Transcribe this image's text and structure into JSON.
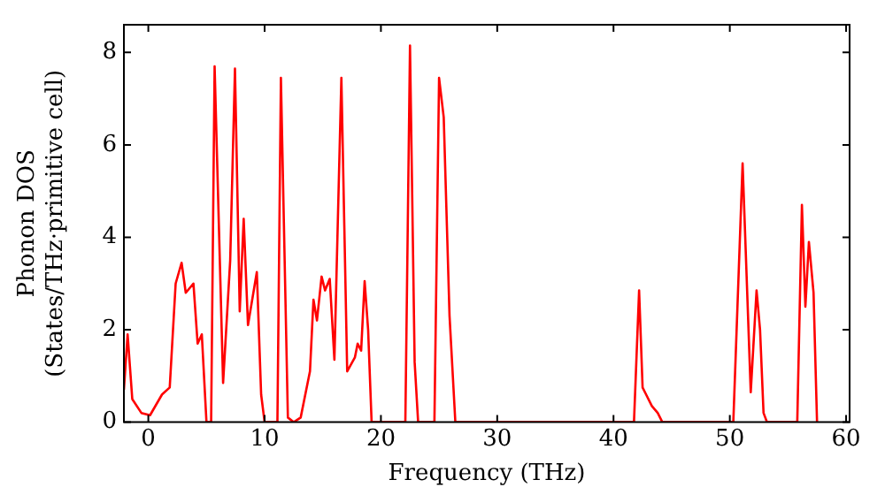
{
  "chart_data": {
    "type": "line",
    "xlabel": "Frequency (THz)",
    "ylabel": "Phonon DOS\n(States/THz·primitive cell)",
    "xlim": [
      -2.1,
      60.3
    ],
    "ylim": [
      0,
      8.6
    ],
    "xticks": [
      0,
      10,
      20,
      30,
      40,
      50,
      60
    ],
    "yticks": [
      0,
      2,
      4,
      6,
      8
    ],
    "grid": false,
    "legend": false,
    "marker": "none",
    "line_style": "solid",
    "series": [
      {
        "color": "#ff0000",
        "x": [
          -2.1,
          -1.78,
          -1.38,
          -0.6,
          0.15,
          1.18,
          1.84,
          2.35,
          2.86,
          3.22,
          3.88,
          4.24,
          4.6,
          5.0,
          5.4,
          5.7,
          6.43,
          7.04,
          7.45,
          7.86,
          8.2,
          8.57,
          9.33,
          9.7,
          10.0,
          11.1,
          11.4,
          12.0,
          12.5,
          13.1,
          13.9,
          14.2,
          14.5,
          14.9,
          15.2,
          15.6,
          16.0,
          16.6,
          17.1,
          17.76,
          18.0,
          18.3,
          18.6,
          18.9,
          19.2,
          22.1,
          22.5,
          22.9,
          23.2,
          24.6,
          25.0,
          25.4,
          25.9,
          26.4,
          41.76,
          42.2,
          42.5,
          42.8,
          43.3,
          43.8,
          44.2,
          50.3,
          51.1,
          51.8,
          52.3,
          52.6,
          52.9,
          53.2,
          55.8,
          56.2,
          56.5,
          56.8,
          57.2,
          57.5
        ],
        "values": [
          0.7,
          1.9,
          0.5,
          0.2,
          0.15,
          0.6,
          0.75,
          3.0,
          3.45,
          2.8,
          3.0,
          1.7,
          1.9,
          0,
          0,
          7.7,
          0.85,
          3.5,
          7.65,
          2.4,
          4.4,
          2.1,
          3.25,
          0.6,
          0,
          0,
          7.45,
          0.1,
          0,
          0.1,
          1.1,
          2.65,
          2.2,
          3.15,
          2.85,
          3.1,
          1.35,
          7.45,
          1.1,
          1.4,
          1.7,
          1.55,
          3.05,
          2.0,
          0,
          0,
          8.15,
          1.3,
          0,
          0,
          7.45,
          6.6,
          2.3,
          0,
          0,
          2.85,
          0.75,
          0.6,
          0.35,
          0.2,
          0,
          0,
          5.6,
          0.65,
          2.85,
          2.0,
          0.2,
          0,
          0,
          4.7,
          2.5,
          3.9,
          2.8,
          0
        ]
      }
    ]
  }
}
